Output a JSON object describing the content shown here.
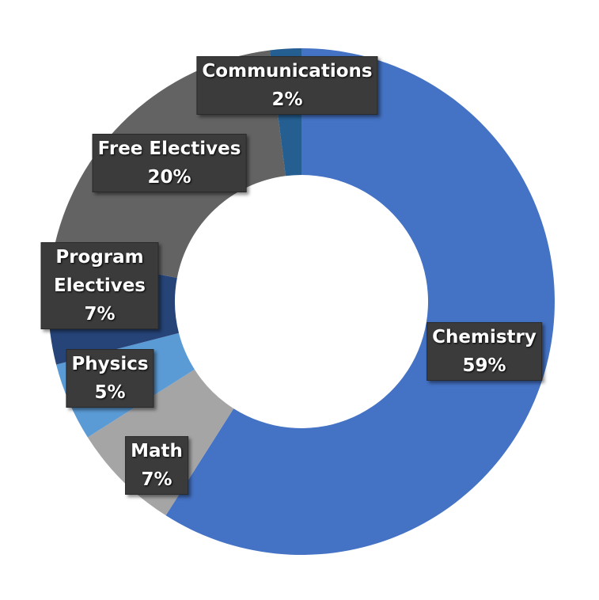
{
  "chart_data": {
    "type": "donut",
    "categories": [
      "Chemistry",
      "Math",
      "Physics",
      "Program Electives",
      "Free Electives",
      "Communications"
    ],
    "values": [
      59,
      7,
      5,
      7,
      20,
      2
    ],
    "value_labels": [
      "59%",
      "7%",
      "5%",
      "7%",
      "20%",
      "2%"
    ],
    "colors": [
      "#4472c4",
      "#a5a5a5",
      "#5b9bd5",
      "#264478",
      "#636363",
      "#255e91"
    ]
  }
}
